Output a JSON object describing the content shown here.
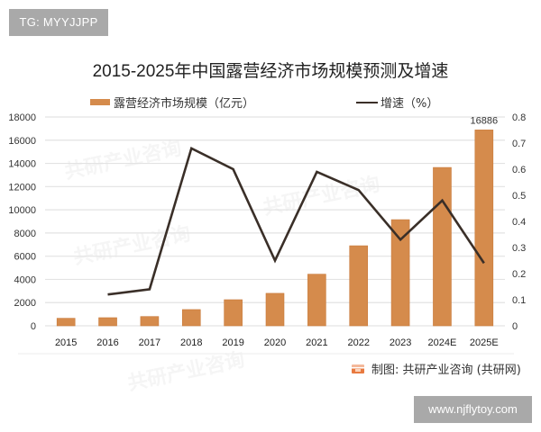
{
  "badges": {
    "top_left": "TG: MYYJJPP",
    "bottom_right": "www.njflytoy.com"
  },
  "watermark_text": "共研产业咨询",
  "source": {
    "icon": "gonyan-logo-icon",
    "text": "制图: 共研产业咨询 (共研网)"
  },
  "colors": {
    "bar": "#d58b4c",
    "line": "#3a2f28",
    "grid": "#e3e3e3",
    "axis_text": "#333333"
  },
  "chart_data": {
    "type": "bar+line",
    "title": "2015-2025年中国露营经济市场规模预测及增速",
    "xlabel": "",
    "ylabel": "",
    "categories": [
      "2015",
      "2016",
      "2017",
      "2018",
      "2019",
      "2020",
      "2021",
      "2022",
      "2023",
      "2024E",
      "2025E"
    ],
    "series": [
      {
        "name": "露营经济市场规模（亿元）",
        "type": "bar",
        "axis": "left",
        "values": [
          650,
          700,
          800,
          1400,
          2250,
          2800,
          4450,
          6900,
          9150,
          13650,
          16886
        ]
      },
      {
        "name": "增速（%）",
        "type": "line",
        "axis": "right",
        "values": [
          null,
          0.12,
          0.14,
          0.68,
          0.6,
          0.25,
          0.59,
          0.52,
          0.33,
          0.48,
          0.24
        ]
      }
    ],
    "data_labels": [
      {
        "category": "2025E",
        "text": "16886"
      }
    ],
    "ylim": [
      0,
      18000
    ],
    "y_ticks": [
      "0",
      "2000",
      "4000",
      "6000",
      "8000",
      "10000",
      "12000",
      "14000",
      "16000",
      "18000"
    ],
    "y2lim": [
      0,
      0.8
    ],
    "y2_ticks": [
      "0",
      "0.1",
      "0.2",
      "0.3",
      "0.4",
      "0.5",
      "0.6",
      "0.7",
      "0.8"
    ],
    "grid": true,
    "legend_position": "top"
  }
}
